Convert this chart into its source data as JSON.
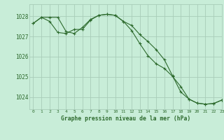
{
  "title": "Graphe pression niveau de la mer (hPa)",
  "background_color": "#c8edd8",
  "grid_color": "#a8ccb8",
  "line_color": "#2d6a2d",
  "marker_color": "#2d6a2d",
  "xlim": [
    -0.5,
    23
  ],
  "ylim": [
    1023.4,
    1028.6
  ],
  "yticks": [
    1024,
    1025,
    1026,
    1027,
    1028
  ],
  "xticks": [
    0,
    1,
    2,
    3,
    4,
    5,
    6,
    7,
    8,
    9,
    10,
    11,
    12,
    13,
    14,
    15,
    16,
    17,
    18,
    19,
    20,
    21,
    22,
    23
  ],
  "series1_x": [
    0,
    1,
    2,
    3,
    4,
    5,
    6,
    7,
    8,
    9,
    10,
    11,
    12,
    13,
    14,
    15,
    16,
    17,
    18,
    19,
    20,
    21,
    22,
    23
  ],
  "series1_y": [
    1027.65,
    1027.95,
    1027.95,
    1027.95,
    1027.25,
    1027.15,
    1027.45,
    1027.85,
    1028.05,
    1028.1,
    1028.05,
    1027.75,
    1027.55,
    1027.1,
    1026.75,
    1026.35,
    1025.85,
    1025.05,
    1024.25,
    1023.9,
    1023.7,
    1023.65,
    1023.68,
    1023.85
  ],
  "series2_x": [
    0,
    1,
    2,
    3,
    4,
    5,
    6,
    7,
    8,
    9,
    10,
    11,
    12,
    13,
    14,
    15,
    16,
    17,
    18,
    19,
    20,
    21,
    22,
    23
  ],
  "series2_y": [
    1027.65,
    1027.95,
    1027.75,
    1027.2,
    1027.15,
    1027.35,
    1027.35,
    1027.82,
    1028.05,
    1028.1,
    1028.05,
    1027.75,
    1027.3,
    1026.65,
    1026.05,
    1025.65,
    1025.42,
    1025.02,
    1024.52,
    1023.9,
    1023.7,
    1023.65,
    1023.68,
    1023.85
  ]
}
